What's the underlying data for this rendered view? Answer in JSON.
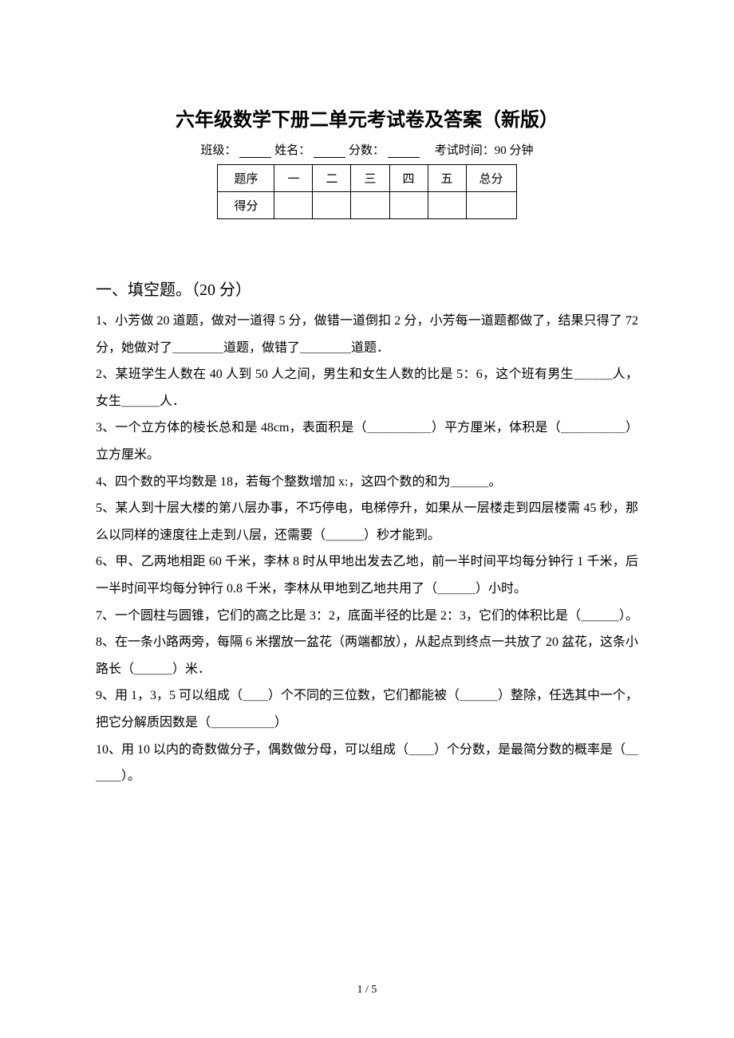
{
  "document": {
    "title": "六年级数学下册二单元考试卷及答案（新版）",
    "info_line": {
      "class_label": "班级：",
      "name_label": "姓名：",
      "score_label": "分数：",
      "time_label": "考试时间：90 分钟"
    },
    "score_table": {
      "headers": [
        "题序",
        "一",
        "二",
        "三",
        "四",
        "五",
        "总分"
      ],
      "row_label": "得分"
    },
    "section_heading": "一、填空题。（20 分）",
    "questions": {
      "q1": "1、小芳做 20 道题，做对一道得 5 分，做错一道倒扣 2 分，小芳每一道题都做了，结果只得了 72 分，她做对了＿＿＿＿道题，做错了＿＿＿＿道题．",
      "q2": "2、某班学生人数在 40 人到 50 人之间，男生和女生人数的比是 5：6，这个班有男生＿＿＿人，女生＿＿＿人．",
      "q3": "3、一个立方体的棱长总和是 48cm，表面积是（＿＿＿＿＿）平方厘米，体积是（＿＿＿＿＿）立方厘米。",
      "q4": "4、四个数的平均数是 18，若每个整数增加 x:，这四个数的和为＿＿＿。",
      "q5": "5、某人到十层大楼的第八层办事，不巧停电，电梯停升，如果从一层楼走到四层楼需 45 秒，那么以同样的速度往上走到八层，还需要（＿＿＿）秒才能到。",
      "q6": "6、甲、乙两地相距 60 千米，李林 8 时从甲地出发去乙地，前一半时间平均每分钟行 1 千米，后一半时间平均每分钟行 0.8 千米，李林从甲地到乙地共用了（＿＿＿）小时。",
      "q7": "7、一个圆柱与圆锥，它们的高之比是 3：2，底面半径的比是 2：3，它们的体积比是（＿＿＿）。",
      "q8": "8、在一条小路两旁，每隔 6 米摆放一盆花（两端都放），从起点到终点一共放了 20 盆花，这条小路长（＿＿＿）米．",
      "q9": "9、用 1，3，5 可以组成（＿＿）个不同的三位数，它们都能被（＿＿＿）整除，任选其中一个，把它分解质因数是（＿＿＿＿＿）",
      "q10": "10、用 10 以内的奇数做分子，偶数做分母，可以组成（＿＿）个分数，是最简分数的概率是（＿＿＿）。"
    },
    "page_footer": "1 / 5"
  }
}
